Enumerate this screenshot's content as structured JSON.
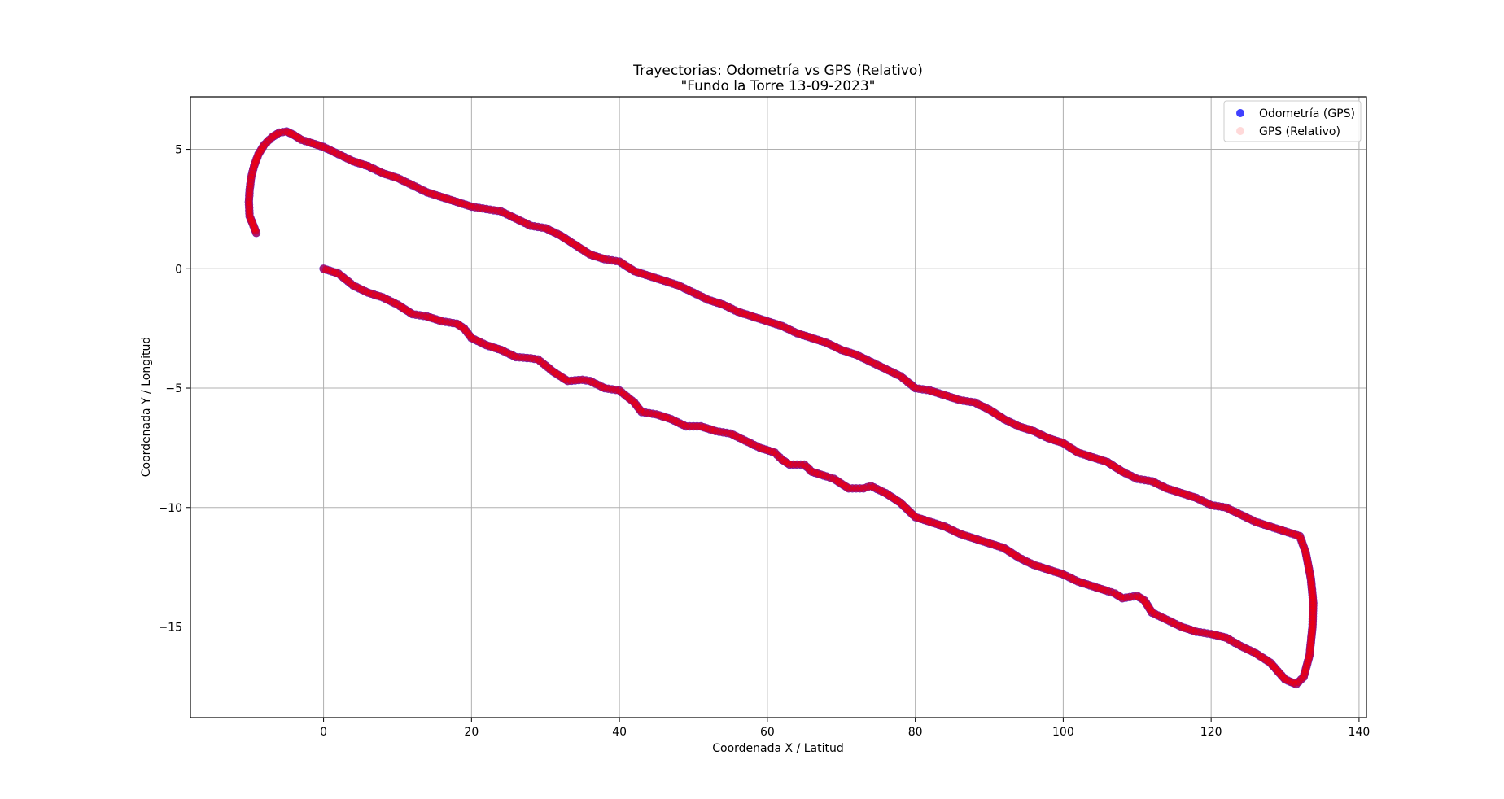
{
  "chart_data": {
    "type": "scatter",
    "title": "Trayectorias: Odometría vs GPS (Relativo)",
    "subtitle": "\"Fundo la Torre 13-09-2023\"",
    "xlabel": "Coordenada X / Latitud",
    "ylabel": "Coordenada Y / Longitud",
    "xlim": [
      -18,
      141
    ],
    "ylim": [
      -18.8,
      7.2
    ],
    "xticks": [
      0,
      20,
      40,
      60,
      80,
      100,
      120,
      140
    ],
    "yticks": [
      5,
      0,
      -5,
      -10,
      -15
    ],
    "grid": true,
    "legend_position": "top-right",
    "series": [
      {
        "name": "Odometría (GPS)",
        "color": "#0000ff",
        "opacity": 0.75,
        "marker": "circle"
      },
      {
        "name": "GPS (Relativo)",
        "color": "#ff0000",
        "opacity": 0.15,
        "marker": "circle"
      }
    ],
    "path": [
      [
        0,
        0
      ],
      [
        2,
        -0.2
      ],
      [
        4,
        -0.7
      ],
      [
        6,
        -1.0
      ],
      [
        8,
        -1.2
      ],
      [
        10,
        -1.5
      ],
      [
        12,
        -1.9
      ],
      [
        14,
        -2.0
      ],
      [
        16,
        -2.2
      ],
      [
        18,
        -2.3
      ],
      [
        19,
        -2.5
      ],
      [
        20,
        -2.9
      ],
      [
        22,
        -3.2
      ],
      [
        24,
        -3.4
      ],
      [
        26,
        -3.7
      ],
      [
        28,
        -3.75
      ],
      [
        29,
        -3.8
      ],
      [
        31,
        -4.3
      ],
      [
        33,
        -4.7
      ],
      [
        35,
        -4.65
      ],
      [
        36,
        -4.7
      ],
      [
        38,
        -5.0
      ],
      [
        40,
        -5.1
      ],
      [
        42,
        -5.6
      ],
      [
        43,
        -6.0
      ],
      [
        45,
        -6.1
      ],
      [
        47,
        -6.3
      ],
      [
        49,
        -6.6
      ],
      [
        51,
        -6.6
      ],
      [
        53,
        -6.8
      ],
      [
        55,
        -6.9
      ],
      [
        57,
        -7.2
      ],
      [
        59,
        -7.5
      ],
      [
        61,
        -7.7
      ],
      [
        62,
        -8.0
      ],
      [
        63,
        -8.2
      ],
      [
        65,
        -8.2
      ],
      [
        66,
        -8.5
      ],
      [
        68,
        -8.7
      ],
      [
        69,
        -8.8
      ],
      [
        71,
        -9.2
      ],
      [
        73,
        -9.2
      ],
      [
        74,
        -9.1
      ],
      [
        76,
        -9.4
      ],
      [
        78,
        -9.8
      ],
      [
        80,
        -10.4
      ],
      [
        82,
        -10.6
      ],
      [
        84,
        -10.8
      ],
      [
        86,
        -11.1
      ],
      [
        88,
        -11.3
      ],
      [
        90,
        -11.5
      ],
      [
        92,
        -11.7
      ],
      [
        94,
        -12.1
      ],
      [
        96,
        -12.4
      ],
      [
        98,
        -12.6
      ],
      [
        100,
        -12.8
      ],
      [
        102,
        -13.1
      ],
      [
        104,
        -13.3
      ],
      [
        106,
        -13.5
      ],
      [
        107,
        -13.6
      ],
      [
        108,
        -13.8
      ],
      [
        110,
        -13.7
      ],
      [
        111,
        -13.9
      ],
      [
        112,
        -14.4
      ],
      [
        114,
        -14.7
      ],
      [
        116,
        -15.0
      ],
      [
        118,
        -15.2
      ],
      [
        120,
        -15.3
      ],
      [
        122,
        -15.45
      ],
      [
        124,
        -15.8
      ],
      [
        126,
        -16.1
      ],
      [
        128,
        -16.5
      ],
      [
        130,
        -17.2
      ],
      [
        131.5,
        -17.4
      ],
      [
        132.5,
        -17.1
      ],
      [
        133.3,
        -16.2
      ],
      [
        133.7,
        -15.0
      ],
      [
        133.8,
        -14.0
      ],
      [
        133.5,
        -13.0
      ],
      [
        132.8,
        -11.9
      ],
      [
        132,
        -11.2
      ],
      [
        130,
        -11.0
      ],
      [
        128,
        -10.8
      ],
      [
        126,
        -10.6
      ],
      [
        124,
        -10.3
      ],
      [
        122,
        -10.0
      ],
      [
        120,
        -9.9
      ],
      [
        118,
        -9.6
      ],
      [
        116,
        -9.4
      ],
      [
        114,
        -9.2
      ],
      [
        112,
        -8.9
      ],
      [
        110,
        -8.8
      ],
      [
        108,
        -8.5
      ],
      [
        106,
        -8.1
      ],
      [
        104,
        -7.9
      ],
      [
        102,
        -7.7
      ],
      [
        100,
        -7.3
      ],
      [
        98,
        -7.1
      ],
      [
        96,
        -6.8
      ],
      [
        94,
        -6.6
      ],
      [
        92,
        -6.3
      ],
      [
        90,
        -5.9
      ],
      [
        88,
        -5.6
      ],
      [
        86,
        -5.5
      ],
      [
        84,
        -5.3
      ],
      [
        82,
        -5.1
      ],
      [
        80,
        -5.0
      ],
      [
        78,
        -4.5
      ],
      [
        76,
        -4.2
      ],
      [
        74,
        -3.9
      ],
      [
        72,
        -3.6
      ],
      [
        70,
        -3.4
      ],
      [
        68,
        -3.1
      ],
      [
        66,
        -2.9
      ],
      [
        64,
        -2.7
      ],
      [
        62,
        -2.4
      ],
      [
        60,
        -2.2
      ],
      [
        58,
        -2.0
      ],
      [
        56,
        -1.8
      ],
      [
        54,
        -1.5
      ],
      [
        52,
        -1.3
      ],
      [
        50,
        -1.0
      ],
      [
        48,
        -0.7
      ],
      [
        46,
        -0.5
      ],
      [
        44,
        -0.3
      ],
      [
        42,
        -0.1
      ],
      [
        40,
        0.3
      ],
      [
        38,
        0.4
      ],
      [
        36,
        0.6
      ],
      [
        34,
        1.0
      ],
      [
        32,
        1.4
      ],
      [
        30,
        1.7
      ],
      [
        28,
        1.8
      ],
      [
        26,
        2.1
      ],
      [
        24,
        2.4
      ],
      [
        22,
        2.5
      ],
      [
        20,
        2.6
      ],
      [
        18,
        2.8
      ],
      [
        16,
        3.0
      ],
      [
        14,
        3.2
      ],
      [
        12,
        3.5
      ],
      [
        10,
        3.8
      ],
      [
        8,
        4.0
      ],
      [
        6,
        4.3
      ],
      [
        4,
        4.5
      ],
      [
        2,
        4.8
      ],
      [
        0,
        5.1
      ],
      [
        -2,
        5.3
      ],
      [
        -3,
        5.4
      ],
      [
        -4,
        5.6
      ],
      [
        -5,
        5.75
      ],
      [
        -6,
        5.7
      ],
      [
        -7,
        5.5
      ],
      [
        -8,
        5.2
      ],
      [
        -8.8,
        4.8
      ],
      [
        -9.4,
        4.3
      ],
      [
        -9.8,
        3.8
      ],
      [
        -10,
        3.3
      ],
      [
        -10.1,
        2.8
      ],
      [
        -10,
        2.2
      ],
      [
        -9.6,
        1.9
      ],
      [
        -9.1,
        1.5
      ]
    ]
  }
}
